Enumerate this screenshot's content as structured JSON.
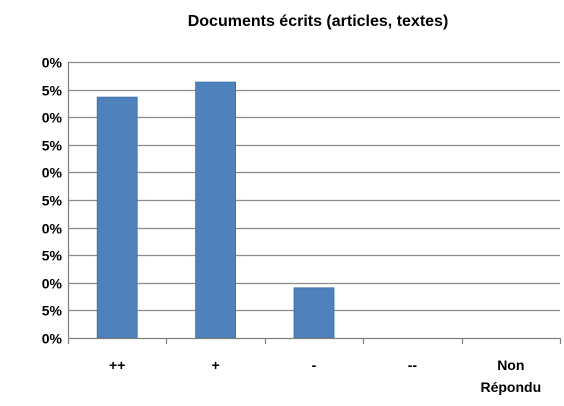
{
  "chart_data": {
    "type": "bar",
    "title": "Documents écrits (articles, textes)",
    "xlabel": "",
    "ylabel": "",
    "categories": [
      "++",
      "+",
      "-",
      "--",
      "Non Répondu"
    ],
    "category_label_lines": [
      [
        "++"
      ],
      [
        "+"
      ],
      [
        "-"
      ],
      [
        "--"
      ],
      [
        "Non",
        "Répondu"
      ]
    ],
    "values": [
      9.6,
      10.2,
      2.0,
      0,
      0
    ],
    "ylim": [
      0,
      11
    ],
    "y_tick_labels": [
      "0%",
      "5%",
      "0%",
      "5%",
      "0%",
      "5%",
      "0%",
      "5%",
      "0%",
      "5%",
      "0%"
    ],
    "grid": true,
    "legend": "none",
    "colors": {
      "bar": "#4f81bd",
      "bar_edge": "#3a6ea5",
      "grid": "#8c8c8c",
      "axis": "#7f7f7f"
    }
  }
}
